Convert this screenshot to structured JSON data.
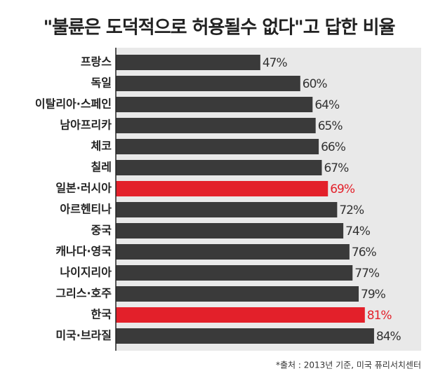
{
  "chart_data": {
    "type": "hbar",
    "title": "\"불륜은 도덕적으로 허용될수 없다\"고 답한 비율",
    "categories": [
      "프랑스",
      "독일",
      "이탈리아·스페인",
      "남아프리카",
      "체코",
      "칠레",
      "일본·러시아",
      "아르헨티나",
      "중국",
      "캐나다·영국",
      "나이지리아",
      "그리스·호주",
      "한국",
      "미국·브라질"
    ],
    "values": [
      47,
      60,
      64,
      65,
      66,
      67,
      69,
      72,
      74,
      76,
      77,
      79,
      81,
      84
    ],
    "value_labels": [
      "47%",
      "60%",
      "64%",
      "65%",
      "66%",
      "67%",
      "69%",
      "72%",
      "74%",
      "76%",
      "77%",
      "79%",
      "81%",
      "84%"
    ],
    "colors": [
      "#3a3a3a",
      "#3a3a3a",
      "#3a3a3a",
      "#3a3a3a",
      "#3a3a3a",
      "#3a3a3a",
      "#e3202a",
      "#3a3a3a",
      "#3a3a3a",
      "#3a3a3a",
      "#3a3a3a",
      "#3a3a3a",
      "#e3202a",
      "#3a3a3a"
    ],
    "xlim": [
      0,
      100
    ],
    "source": "*출처 : 2013년 기준, 미국 퓨리서치센터"
  }
}
